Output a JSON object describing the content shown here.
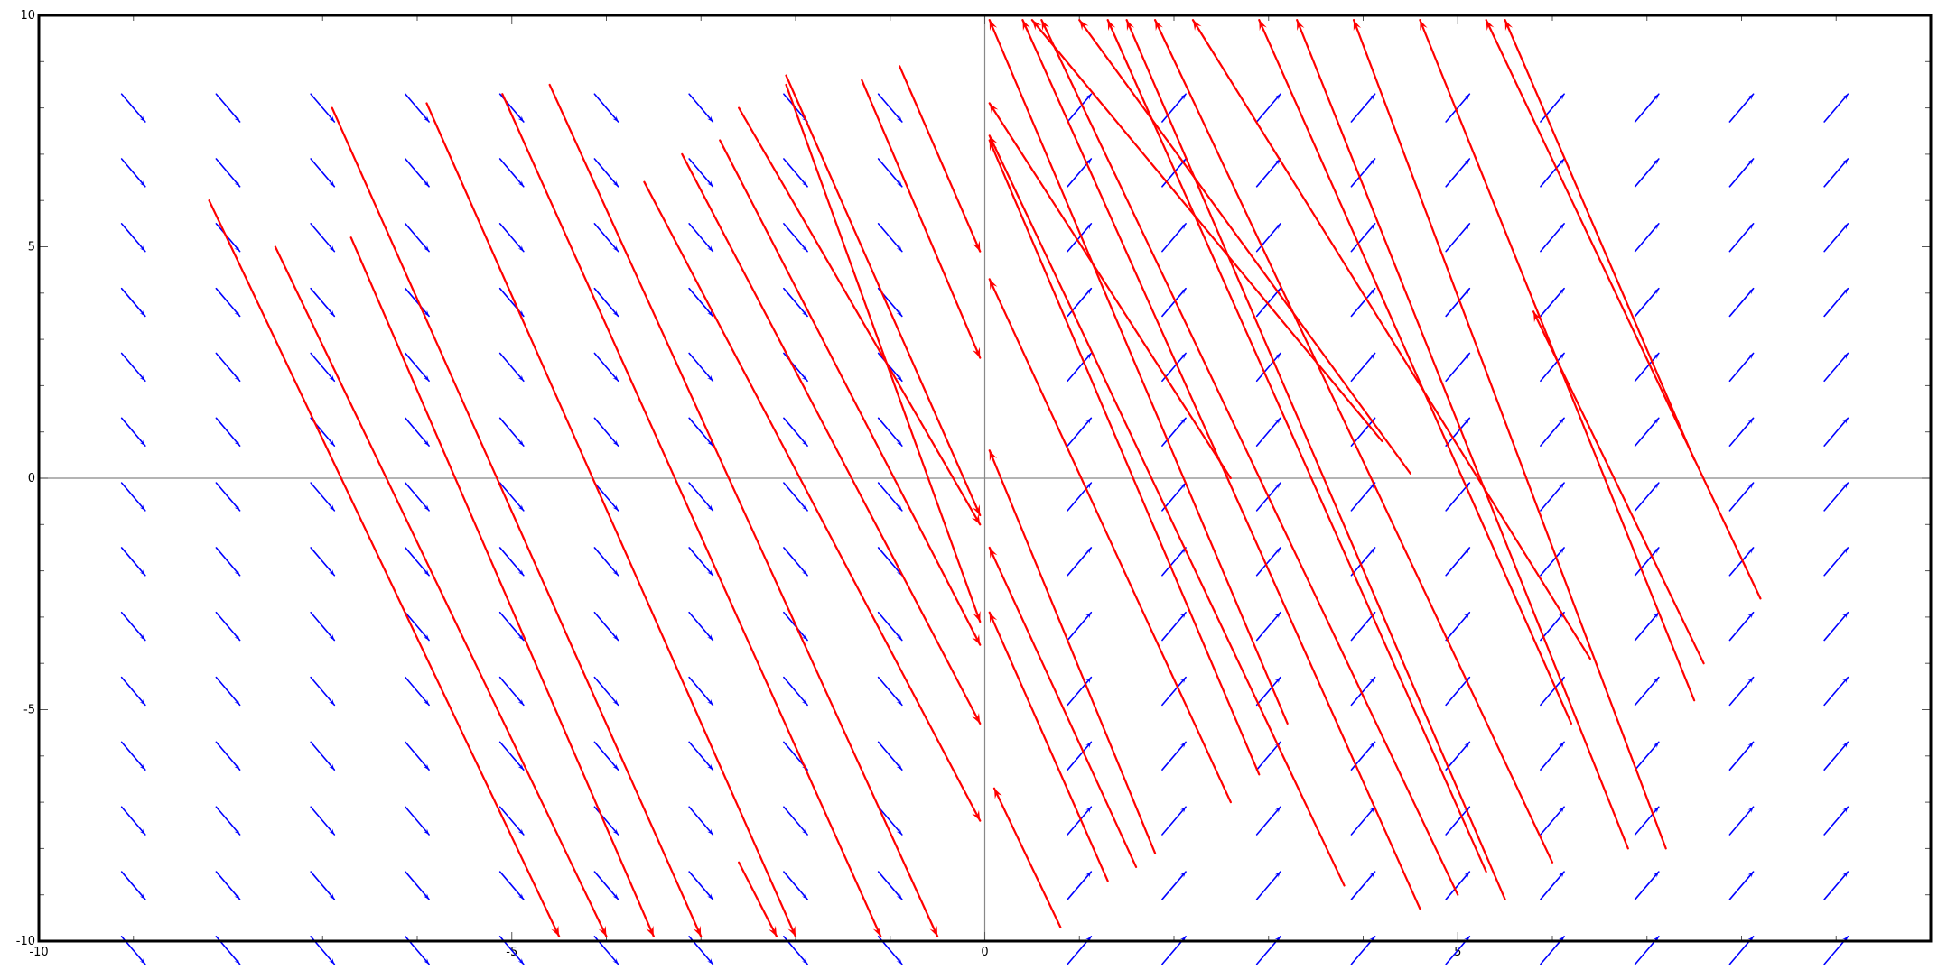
{
  "chart_data": {
    "type": "vector_field",
    "title": "",
    "xlabel": "",
    "ylabel": "",
    "xlim": [
      -10,
      10
    ],
    "ylim": [
      -10,
      10
    ],
    "x_ticks": [
      -10,
      -5,
      0,
      5
    ],
    "x_tick_labels": [
      "-10",
      "-5",
      "0",
      "5"
    ],
    "y_ticks": [
      10,
      5,
      0,
      -5,
      -10
    ],
    "y_tick_labels": [
      "10",
      "5",
      "0",
      "-5",
      "-10"
    ],
    "grid": false,
    "field": {
      "description_rule": "direction depends on sign of x",
      "x_grid": [
        -9,
        -8,
        -7,
        -6,
        -5,
        -4,
        -3,
        -2,
        -1,
        1,
        2,
        3,
        4,
        5,
        6,
        7,
        8,
        9
      ],
      "y_grid": [
        8,
        6.6,
        5.2,
        3.8,
        2.4,
        1,
        -0.4,
        -1.8,
        -3.2,
        -4.6,
        -6,
        -7.4,
        -8.8,
        -10.2
      ],
      "vector_left": [
        0.25,
        -0.6
      ],
      "vector_right": [
        0.25,
        0.6
      ],
      "color": "#0000ff"
    },
    "trajectories": {
      "color": "#ff0000",
      "left": [
        {
          "x0": -8.2,
          "y0": 6.0,
          "x1": -4.5,
          "y1": -9.9
        },
        {
          "x0": -7.5,
          "y0": 5.0,
          "x1": -4.0,
          "y1": -9.9
        },
        {
          "x0": -6.7,
          "y0": 5.2,
          "x1": -3.5,
          "y1": -9.9
        },
        {
          "x0": -6.9,
          "y0": 8.0,
          "x1": -3.0,
          "y1": -9.9
        },
        {
          "x0": -5.9,
          "y0": 8.1,
          "x1": -2.0,
          "y1": -9.9
        },
        {
          "x0": -5.1,
          "y0": 8.3,
          "x1": -1.1,
          "y1": -9.9
        },
        {
          "x0": -4.6,
          "y0": 8.5,
          "x1": -0.5,
          "y1": -9.9
        },
        {
          "x0": -3.6,
          "y0": 6.4,
          "x1": -0.05,
          "y1": -7.4
        },
        {
          "x0": -3.2,
          "y0": 7.0,
          "x1": -0.05,
          "y1": -5.3
        },
        {
          "x0": -2.8,
          "y0": 7.3,
          "x1": -0.05,
          "y1": -3.6
        },
        {
          "x0": -2.6,
          "y0": -8.3,
          "x1": -2.2,
          "y1": -9.9
        },
        {
          "x0": -2.6,
          "y0": 8.0,
          "x1": -0.05,
          "y1": -1.0
        },
        {
          "x0": -2.1,
          "y0": 8.7,
          "x1": -0.05,
          "y1": -0.8
        },
        {
          "x0": -2.1,
          "y0": 8.5,
          "x1": -0.05,
          "y1": -3.1
        },
        {
          "x0": -1.3,
          "y0": 8.6,
          "x1": -0.05,
          "y1": 2.6
        },
        {
          "x0": -0.9,
          "y0": 8.9,
          "x1": -0.05,
          "y1": 4.9
        }
      ],
      "right": [
        {
          "x0": 0.8,
          "y0": -9.7,
          "x1": 0.1,
          "y1": -6.7
        },
        {
          "x0": 1.3,
          "y0": -8.7,
          "x1": 0.05,
          "y1": -2.9
        },
        {
          "x0": 1.6,
          "y0": -8.4,
          "x1": 0.05,
          "y1": -1.5
        },
        {
          "x0": 1.8,
          "y0": -8.1,
          "x1": 0.05,
          "y1": 0.6
        },
        {
          "x0": 2.6,
          "y0": -7.0,
          "x1": 0.05,
          "y1": 4.3
        },
        {
          "x0": 2.6,
          "y0": 0.0,
          "x1": 0.05,
          "y1": 8.1
        },
        {
          "x0": 2.9,
          "y0": -6.4,
          "x1": 0.05,
          "y1": 7.3
        },
        {
          "x0": 3.2,
          "y0": -5.3,
          "x1": 0.05,
          "y1": 9.9
        },
        {
          "x0": 3.8,
          "y0": -8.8,
          "x1": 0.05,
          "y1": 7.4
        },
        {
          "x0": 4.6,
          "y0": -9.3,
          "x1": 0.4,
          "y1": 9.9
        },
        {
          "x0": 5.0,
          "y0": -9.0,
          "x1": 0.6,
          "y1": 9.9
        },
        {
          "x0": 4.5,
          "y0": 0.1,
          "x1": 1.0,
          "y1": 9.9
        },
        {
          "x0": 4.2,
          "y0": 0.8,
          "x1": 0.5,
          "y1": 9.9
        },
        {
          "x0": 5.3,
          "y0": -8.5,
          "x1": 1.3,
          "y1": 9.9
        },
        {
          "x0": 5.5,
          "y0": -9.1,
          "x1": 1.5,
          "y1": 9.9
        },
        {
          "x0": 6.0,
          "y0": -8.3,
          "x1": 1.8,
          "y1": 9.9
        },
        {
          "x0": 6.4,
          "y0": -3.9,
          "x1": 2.2,
          "y1": 9.9
        },
        {
          "x0": 6.2,
          "y0": -5.3,
          "x1": 2.9,
          "y1": 9.9
        },
        {
          "x0": 6.8,
          "y0": -8.0,
          "x1": 3.3,
          "y1": 9.9
        },
        {
          "x0": 7.2,
          "y0": -8.0,
          "x1": 3.9,
          "y1": 9.9
        },
        {
          "x0": 7.5,
          "y0": -4.8,
          "x1": 4.6,
          "y1": 9.9
        },
        {
          "x0": 7.5,
          "y0": 0.4,
          "x1": 5.5,
          "y1": 9.9
        },
        {
          "x0": 8.2,
          "y0": -2.6,
          "x1": 5.3,
          "y1": 9.9
        },
        {
          "x0": 7.6,
          "y0": -4.0,
          "x1": 5.8,
          "y1": 3.6
        }
      ]
    }
  }
}
